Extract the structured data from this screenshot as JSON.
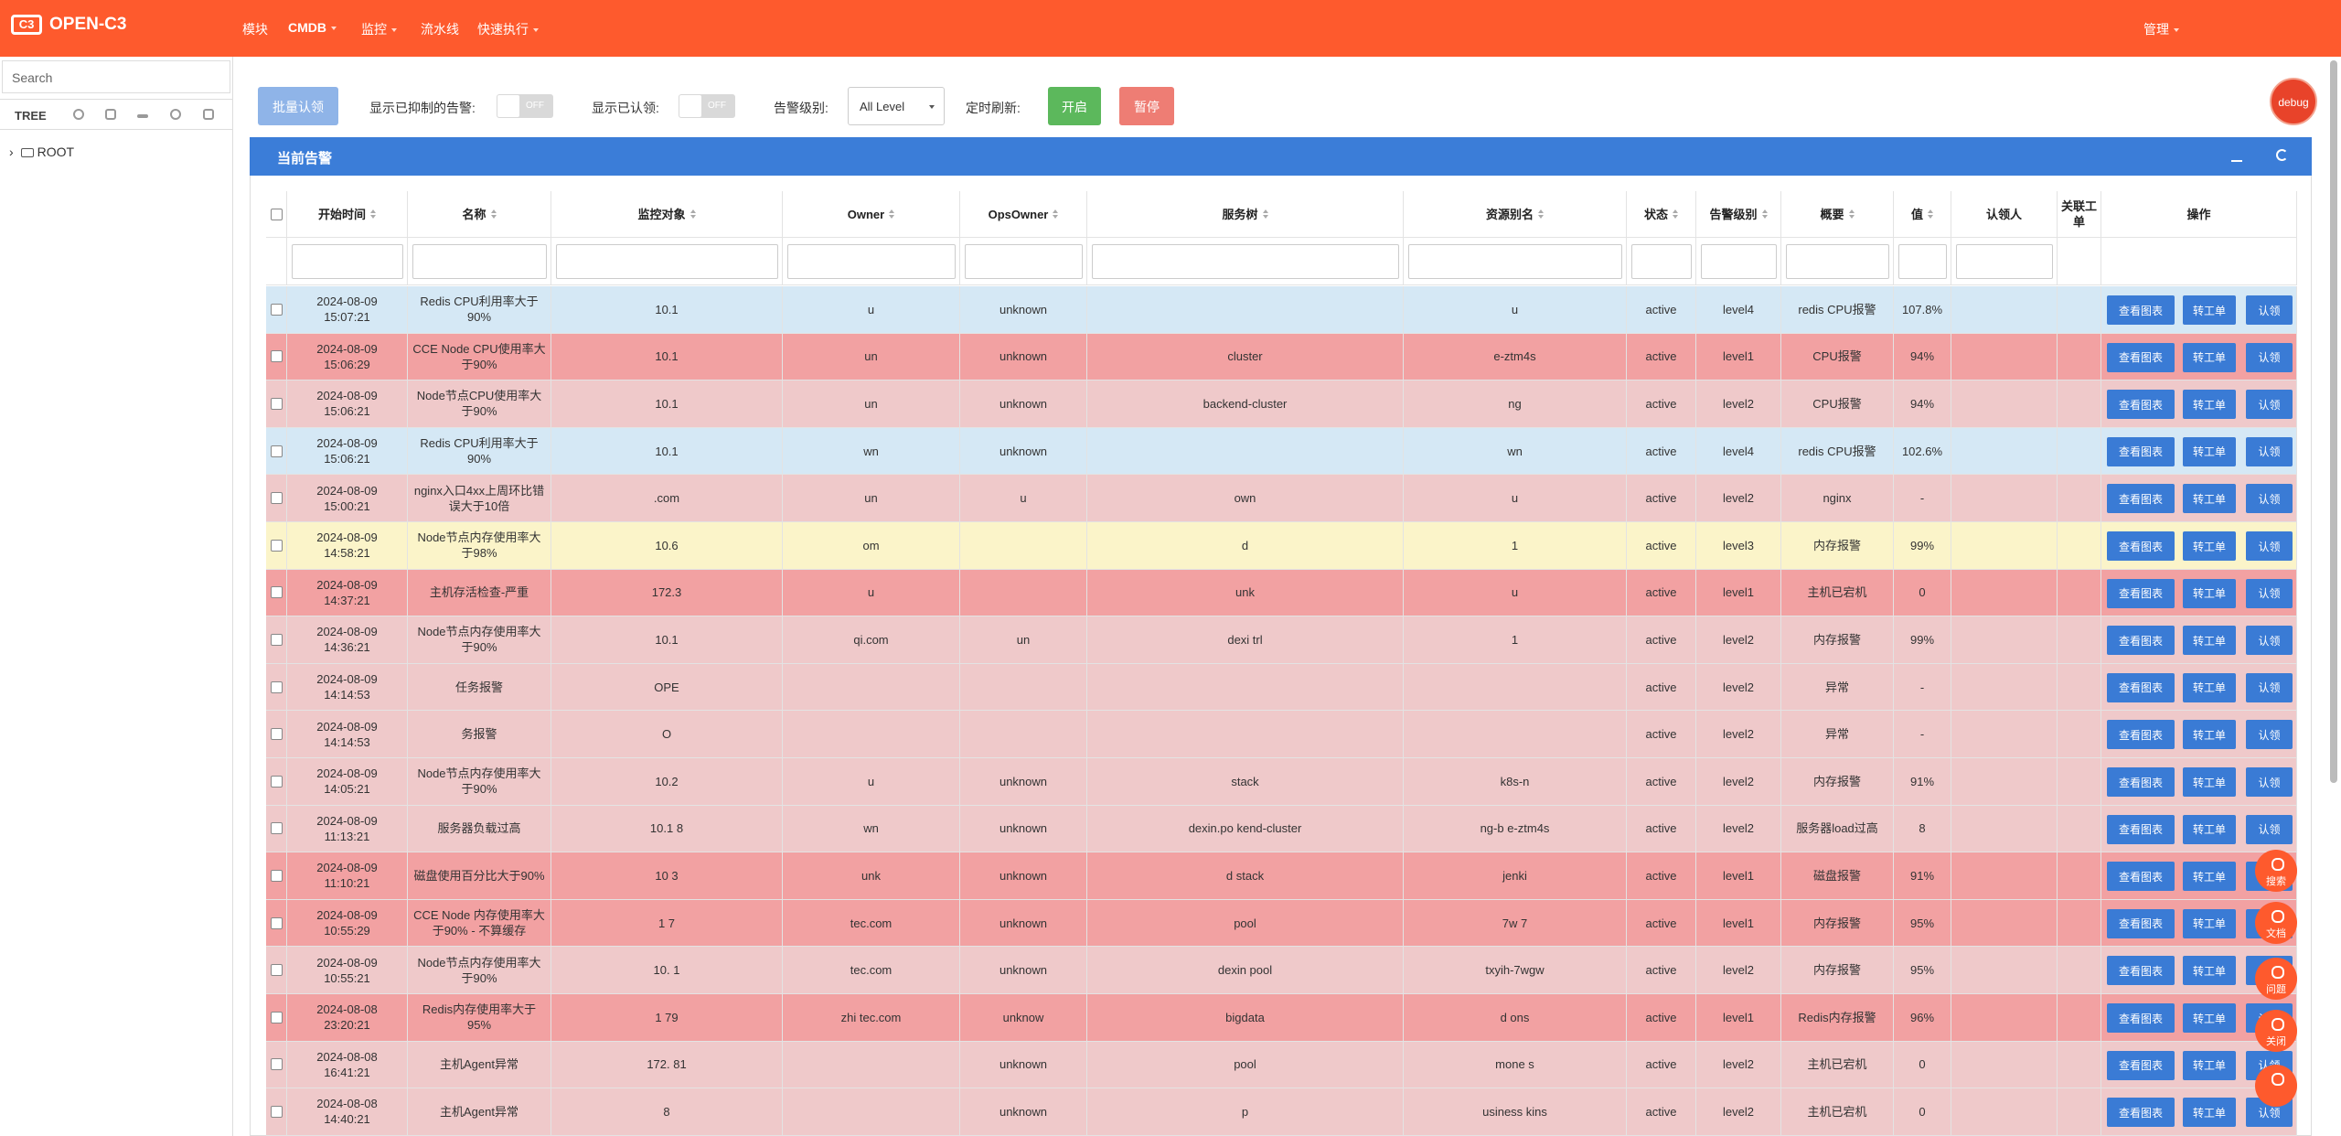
{
  "header": {
    "logo": "OPEN-C3",
    "nav": [
      "模块",
      "CMDB",
      "监控",
      "流水线",
      "快速执行"
    ],
    "admin": "管理"
  },
  "sidebar": {
    "search_placeholder": "Search",
    "tree_label": "TREE",
    "root": "ROOT"
  },
  "toolbar": {
    "batch_claim": "批量认领",
    "show_suppressed": "显示已抑制的告警:",
    "off": "OFF",
    "show_claimed": "显示已认领:",
    "level_label": "告警级别:",
    "level_value": "All Level",
    "refresh_label": "定时刷新:",
    "start": "开启",
    "pause": "暂停",
    "debug": "debug"
  },
  "panel": {
    "title": "当前告警"
  },
  "table": {
    "columns": [
      "开始时间",
      "名称",
      "监控对象",
      "Owner",
      "OpsOwner",
      "服务树",
      "资源别名",
      "状态",
      "告警级别",
      "概要",
      "值",
      "认领人",
      "关联工单",
      "操作"
    ],
    "actions": [
      "查看图表",
      "转工单",
      "认领"
    ],
    "rows": [
      {
        "date": "2024-08-09",
        "time": "15:07:21",
        "name": "Redis CPU利用率大于90%",
        "target": "10.1",
        "owner": "u",
        "ops_owner": "unknown",
        "service_tree": "",
        "alias": "u",
        "status": "active",
        "level": "level4",
        "summary": "redis CPU报警",
        "value": "107.8%"
      },
      {
        "date": "2024-08-09",
        "time": "15:06:29",
        "name": "CCE Node CPU使用率大于90%",
        "target": "10.1",
        "owner": "un",
        "ops_owner": "unknown",
        "service_tree": "cluster",
        "alias": "e-ztm4s",
        "status": "active",
        "level": "level1",
        "summary": "CPU报警",
        "value": "94%"
      },
      {
        "date": "2024-08-09",
        "time": "15:06:21",
        "name": "Node节点CPU使用率大于90%",
        "target": "10.1",
        "owner": "un",
        "ops_owner": "unknown",
        "service_tree": "backend-cluster",
        "alias": "ng",
        "status": "active",
        "level": "level2",
        "summary": "CPU报警",
        "value": "94%"
      },
      {
        "date": "2024-08-09",
        "time": "15:06:21",
        "name": "Redis CPU利用率大于90%",
        "target": "10.1",
        "owner": "wn",
        "ops_owner": "unknown",
        "service_tree": "",
        "alias": "wn",
        "status": "active",
        "level": "level4",
        "summary": "redis CPU报警",
        "value": "102.6%"
      },
      {
        "date": "2024-08-09",
        "time": "15:00:21",
        "name": "nginx入口4xx上周环比错误大于10倍",
        "target": ".com",
        "owner": "un",
        "ops_owner": "u",
        "service_tree": "own",
        "alias": "u",
        "status": "active",
        "level": "level2",
        "summary": "nginx",
        "value": "-"
      },
      {
        "date": "2024-08-09",
        "time": "14:58:21",
        "name": "Node节点内存使用率大于98%",
        "target": "10.6",
        "owner": "om",
        "ops_owner": "",
        "service_tree": "d",
        "alias": "1",
        "status": "active",
        "level": "level3",
        "summary": "内存报警",
        "value": "99%"
      },
      {
        "date": "2024-08-09",
        "time": "14:37:21",
        "name": "主机存活检查-严重",
        "target": "172.3",
        "owner": "u",
        "ops_owner": "",
        "service_tree": "unk",
        "alias": "u",
        "status": "active",
        "level": "level1",
        "summary": "主机已宕机",
        "value": "0"
      },
      {
        "date": "2024-08-09",
        "time": "14:36:21",
        "name": "Node节点内存使用率大于90%",
        "target": "10.1",
        "owner": "qi.com",
        "ops_owner": "un",
        "service_tree": "dexi trl",
        "alias": "1",
        "status": "active",
        "level": "level2",
        "summary": "内存报警",
        "value": "99%"
      },
      {
        "date": "2024-08-09",
        "time": "14:14:53",
        "name": "任务报警",
        "target": "OPE",
        "owner": "",
        "ops_owner": "",
        "service_tree": "",
        "alias": "",
        "status": "active",
        "level": "level2",
        "summary": "异常",
        "value": "-"
      },
      {
        "date": "2024-08-09",
        "time": "14:14:53",
        "name": "务报警",
        "target": "O",
        "owner": "",
        "ops_owner": "",
        "service_tree": "",
        "alias": "",
        "status": "active",
        "level": "level2",
        "summary": "异常",
        "value": "-"
      },
      {
        "date": "2024-08-09",
        "time": "14:05:21",
        "name": "Node节点内存使用率大于90%",
        "target": "10.2",
        "owner": "u",
        "ops_owner": "unknown",
        "service_tree": "stack",
        "alias": "k8s-n",
        "status": "active",
        "level": "level2",
        "summary": "内存报警",
        "value": "91%"
      },
      {
        "date": "2024-08-09",
        "time": "11:13:21",
        "name": "服务器负载过高",
        "target": "10.1 8",
        "owner": "wn",
        "ops_owner": "unknown",
        "service_tree": "dexin.po kend-cluster",
        "alias": "ng-b e-ztm4s",
        "status": "active",
        "level": "level2",
        "summary": "服务器load过高",
        "value": "8"
      },
      {
        "date": "2024-08-09",
        "time": "11:10:21",
        "name": "磁盘使用百分比大于90%",
        "target": "10 3",
        "owner": "unk",
        "ops_owner": "unknown",
        "service_tree": "d stack",
        "alias": "jenki",
        "status": "active",
        "level": "level1",
        "summary": "磁盘报警",
        "value": "91%"
      },
      {
        "date": "2024-08-09",
        "time": "10:55:29",
        "name": "CCE Node 内存使用率大于90% - 不算缓存",
        "target": "1 7",
        "owner": "tec.com",
        "ops_owner": "unknown",
        "service_tree": "pool",
        "alias": "7w 7",
        "status": "active",
        "level": "level1",
        "summary": "内存报警",
        "value": "95%"
      },
      {
        "date": "2024-08-09",
        "time": "10:55:21",
        "name": "Node节点内存使用率大于90%",
        "target": "10. 1",
        "owner": "tec.com",
        "ops_owner": "unknown",
        "service_tree": "dexin pool",
        "alias": "txyih-7wgw",
        "status": "active",
        "level": "level2",
        "summary": "内存报警",
        "value": "95%"
      },
      {
        "date": "2024-08-08",
        "time": "23:20:21",
        "name": "Redis内存使用率大于95%",
        "target": "1 79",
        "owner": "zhi tec.com",
        "ops_owner": "unknow",
        "service_tree": "bigdata",
        "alias": "d ons",
        "status": "active",
        "level": "level1",
        "summary": "Redis内存报警",
        "value": "96%"
      },
      {
        "date": "2024-08-08",
        "time": "16:41:21",
        "name": "主机Agent异常",
        "target": "172. 81",
        "owner": "",
        "ops_owner": "unknown",
        "service_tree": "pool",
        "alias": "mone s",
        "status": "active",
        "level": "level2",
        "summary": "主机已宕机",
        "value": "0"
      },
      {
        "date": "2024-08-08",
        "time": "14:40:21",
        "name": "主机Agent异常",
        "target": "8",
        "owner": "",
        "ops_owner": "unknown",
        "service_tree": "p",
        "alias": "usiness kins",
        "status": "active",
        "level": "level2",
        "summary": "主机已宕机",
        "value": "0"
      }
    ]
  },
  "floating": [
    "搜索",
    "文档",
    "问题",
    "关闭"
  ]
}
